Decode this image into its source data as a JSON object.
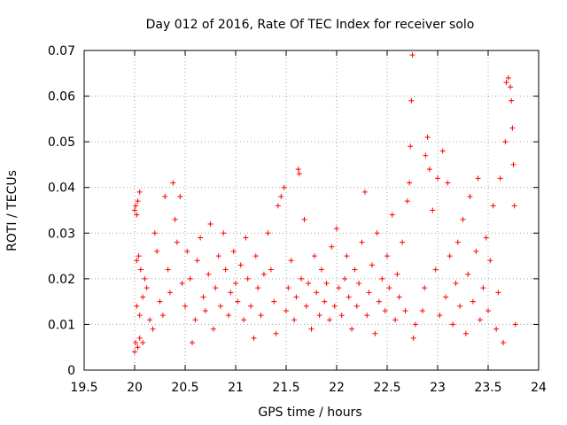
{
  "chart_data": {
    "type": "scatter",
    "title": "Day 012 of 2016, Rate Of TEC Index for receiver solo",
    "xlabel": "GPS time / hours",
    "ylabel": "ROTI / TECUs",
    "xlim": [
      19.5,
      24
    ],
    "ylim": [
      0,
      0.07
    ],
    "xticks": [
      19.5,
      20,
      20.5,
      21,
      21.5,
      22,
      22.5,
      23,
      23.5,
      24
    ],
    "xtick_labels": [
      "19.5",
      "20",
      "20.5",
      "21",
      "21.5",
      "22",
      "22.5",
      "23",
      "23.5",
      "24"
    ],
    "yticks": [
      0,
      0.01,
      0.02,
      0.03,
      0.04,
      0.05,
      0.06,
      0.07
    ],
    "ytick_labels": [
      "0",
      "0.01",
      "0.02",
      "0.03",
      "0.04",
      "0.05",
      "0.06",
      "0.07"
    ],
    "grid": true,
    "marker": "+",
    "color": "#ff0000",
    "series": [
      {
        "name": "ROTI",
        "points": [
          [
            20.0,
            0.035
          ],
          [
            20.01,
            0.036
          ],
          [
            20.02,
            0.034
          ],
          [
            20.03,
            0.037
          ],
          [
            20.05,
            0.039
          ],
          [
            20.0,
            0.004
          ],
          [
            20.01,
            0.006
          ],
          [
            20.03,
            0.005
          ],
          [
            20.05,
            0.007
          ],
          [
            20.08,
            0.006
          ],
          [
            20.02,
            0.024
          ],
          [
            20.04,
            0.025
          ],
          [
            20.06,
            0.022
          ],
          [
            20.02,
            0.014
          ],
          [
            20.05,
            0.012
          ],
          [
            20.08,
            0.016
          ],
          [
            20.1,
            0.02
          ],
          [
            20.12,
            0.018
          ],
          [
            20.15,
            0.011
          ],
          [
            20.18,
            0.009
          ],
          [
            20.2,
            0.03
          ],
          [
            20.22,
            0.026
          ],
          [
            20.25,
            0.015
          ],
          [
            20.28,
            0.012
          ],
          [
            20.3,
            0.038
          ],
          [
            20.33,
            0.022
          ],
          [
            20.35,
            0.017
          ],
          [
            20.38,
            0.041
          ],
          [
            20.4,
            0.033
          ],
          [
            20.42,
            0.028
          ],
          [
            20.45,
            0.038
          ],
          [
            20.47,
            0.019
          ],
          [
            20.5,
            0.014
          ],
          [
            20.52,
            0.026
          ],
          [
            20.55,
            0.02
          ],
          [
            20.57,
            0.006
          ],
          [
            20.6,
            0.011
          ],
          [
            20.62,
            0.024
          ],
          [
            20.65,
            0.029
          ],
          [
            20.68,
            0.016
          ],
          [
            20.7,
            0.013
          ],
          [
            20.73,
            0.021
          ],
          [
            20.75,
            0.032
          ],
          [
            20.78,
            0.009
          ],
          [
            20.8,
            0.018
          ],
          [
            20.83,
            0.025
          ],
          [
            20.85,
            0.014
          ],
          [
            20.88,
            0.03
          ],
          [
            20.9,
            0.022
          ],
          [
            20.93,
            0.012
          ],
          [
            20.95,
            0.017
          ],
          [
            20.98,
            0.026
          ],
          [
            21.0,
            0.019
          ],
          [
            21.02,
            0.015
          ],
          [
            21.05,
            0.023
          ],
          [
            21.08,
            0.011
          ],
          [
            21.1,
            0.029
          ],
          [
            21.12,
            0.02
          ],
          [
            21.15,
            0.014
          ],
          [
            21.18,
            0.007
          ],
          [
            21.2,
            0.025
          ],
          [
            21.22,
            0.018
          ],
          [
            21.25,
            0.012
          ],
          [
            21.28,
            0.021
          ],
          [
            21.32,
            0.03
          ],
          [
            21.35,
            0.022
          ],
          [
            21.38,
            0.015
          ],
          [
            21.4,
            0.008
          ],
          [
            21.42,
            0.036
          ],
          [
            21.45,
            0.038
          ],
          [
            21.48,
            0.04
          ],
          [
            21.5,
            0.013
          ],
          [
            21.52,
            0.018
          ],
          [
            21.55,
            0.024
          ],
          [
            21.58,
            0.011
          ],
          [
            21.6,
            0.016
          ],
          [
            21.62,
            0.044
          ],
          [
            21.63,
            0.043
          ],
          [
            21.65,
            0.02
          ],
          [
            21.68,
            0.033
          ],
          [
            21.7,
            0.014
          ],
          [
            21.72,
            0.019
          ],
          [
            21.75,
            0.009
          ],
          [
            21.78,
            0.025
          ],
          [
            21.8,
            0.017
          ],
          [
            21.83,
            0.012
          ],
          [
            21.85,
            0.022
          ],
          [
            21.88,
            0.015
          ],
          [
            21.9,
            0.019
          ],
          [
            21.93,
            0.011
          ],
          [
            21.95,
            0.027
          ],
          [
            21.98,
            0.014
          ],
          [
            22.0,
            0.031
          ],
          [
            22.02,
            0.018
          ],
          [
            22.05,
            0.012
          ],
          [
            22.08,
            0.02
          ],
          [
            22.1,
            0.025
          ],
          [
            22.12,
            0.016
          ],
          [
            22.15,
            0.009
          ],
          [
            22.18,
            0.022
          ],
          [
            22.2,
            0.014
          ],
          [
            22.22,
            0.019
          ],
          [
            22.25,
            0.028
          ],
          [
            22.28,
            0.039
          ],
          [
            22.3,
            0.012
          ],
          [
            22.32,
            0.017
          ],
          [
            22.35,
            0.023
          ],
          [
            22.38,
            0.008
          ],
          [
            22.4,
            0.03
          ],
          [
            22.42,
            0.015
          ],
          [
            22.45,
            0.02
          ],
          [
            22.48,
            0.013
          ],
          [
            22.5,
            0.025
          ],
          [
            22.52,
            0.018
          ],
          [
            22.55,
            0.034
          ],
          [
            22.58,
            0.011
          ],
          [
            22.6,
            0.021
          ],
          [
            22.62,
            0.016
          ],
          [
            22.65,
            0.028
          ],
          [
            22.68,
            0.013
          ],
          [
            22.7,
            0.037
          ],
          [
            22.72,
            0.041
          ],
          [
            22.73,
            0.049
          ],
          [
            22.74,
            0.059
          ],
          [
            22.75,
            0.069
          ],
          [
            22.76,
            0.007
          ],
          [
            22.78,
            0.01
          ],
          [
            22.85,
            0.013
          ],
          [
            22.87,
            0.018
          ],
          [
            22.88,
            0.047
          ],
          [
            22.9,
            0.051
          ],
          [
            22.92,
            0.044
          ],
          [
            22.95,
            0.035
          ],
          [
            22.98,
            0.022
          ],
          [
            23.0,
            0.042
          ],
          [
            23.02,
            0.012
          ],
          [
            23.05,
            0.048
          ],
          [
            23.08,
            0.016
          ],
          [
            23.1,
            0.041
          ],
          [
            23.12,
            0.025
          ],
          [
            23.15,
            0.01
          ],
          [
            23.18,
            0.019
          ],
          [
            23.2,
            0.028
          ],
          [
            23.22,
            0.014
          ],
          [
            23.25,
            0.033
          ],
          [
            23.28,
            0.008
          ],
          [
            23.3,
            0.021
          ],
          [
            23.32,
            0.038
          ],
          [
            23.35,
            0.015
          ],
          [
            23.38,
            0.026
          ],
          [
            23.4,
            0.042
          ],
          [
            23.42,
            0.011
          ],
          [
            23.45,
            0.018
          ],
          [
            23.48,
            0.029
          ],
          [
            23.5,
            0.013
          ],
          [
            23.52,
            0.024
          ],
          [
            23.55,
            0.036
          ],
          [
            23.58,
            0.009
          ],
          [
            23.6,
            0.017
          ],
          [
            23.62,
            0.042
          ],
          [
            23.65,
            0.006
          ],
          [
            23.67,
            0.05
          ],
          [
            23.68,
            0.063
          ],
          [
            23.7,
            0.064
          ],
          [
            23.72,
            0.062
          ],
          [
            23.73,
            0.059
          ],
          [
            23.74,
            0.053
          ],
          [
            23.75,
            0.045
          ],
          [
            23.76,
            0.036
          ],
          [
            23.77,
            0.01
          ]
        ]
      }
    ]
  }
}
